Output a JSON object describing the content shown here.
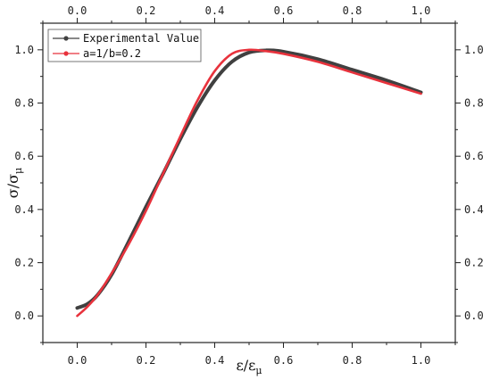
{
  "chart_data": {
    "type": "line",
    "xlabel": "ε/ε",
    "xlabel_sub": "μ",
    "ylabel": "σ/σ",
    "ylabel_sub": "μ",
    "xlim": [
      -0.1,
      1.1
    ],
    "ylim": [
      -0.1,
      1.1
    ],
    "xticks": [
      "0.0",
      "0.2",
      "0.4",
      "0.6",
      "0.8",
      "1.0"
    ],
    "xtick_values": [
      0.0,
      0.2,
      0.4,
      0.6,
      0.8,
      1.0
    ],
    "yticks": [
      "0.0",
      "0.2",
      "0.4",
      "0.6",
      "0.8",
      "1.0"
    ],
    "ytick_values": [
      0.0,
      0.2,
      0.4,
      0.6,
      0.8,
      1.0
    ],
    "grid": false,
    "legend_position": "top-left",
    "series": [
      {
        "name": "Experimental Value",
        "color": "#404040",
        "x": [
          0.0,
          0.03,
          0.06,
          0.1,
          0.15,
          0.2,
          0.25,
          0.3,
          0.35,
          0.4,
          0.45,
          0.5,
          0.55,
          0.6,
          0.7,
          0.8,
          0.9,
          1.0
        ],
        "y": [
          0.03,
          0.045,
          0.08,
          0.155,
          0.28,
          0.41,
          0.535,
          0.665,
          0.785,
          0.885,
          0.955,
          0.99,
          0.998,
          0.993,
          0.965,
          0.925,
          0.885,
          0.84
        ]
      },
      {
        "name": "a=1/b=0.2",
        "color": "#e8323c",
        "x": [
          0.0,
          0.03,
          0.06,
          0.1,
          0.15,
          0.2,
          0.25,
          0.3,
          0.35,
          0.4,
          0.45,
          0.5,
          0.55,
          0.6,
          0.7,
          0.8,
          0.9,
          1.0
        ],
        "y": [
          0.0,
          0.035,
          0.08,
          0.16,
          0.27,
          0.395,
          0.535,
          0.675,
          0.81,
          0.92,
          0.985,
          1.0,
          0.995,
          0.985,
          0.955,
          0.915,
          0.875,
          0.835
        ]
      }
    ]
  }
}
